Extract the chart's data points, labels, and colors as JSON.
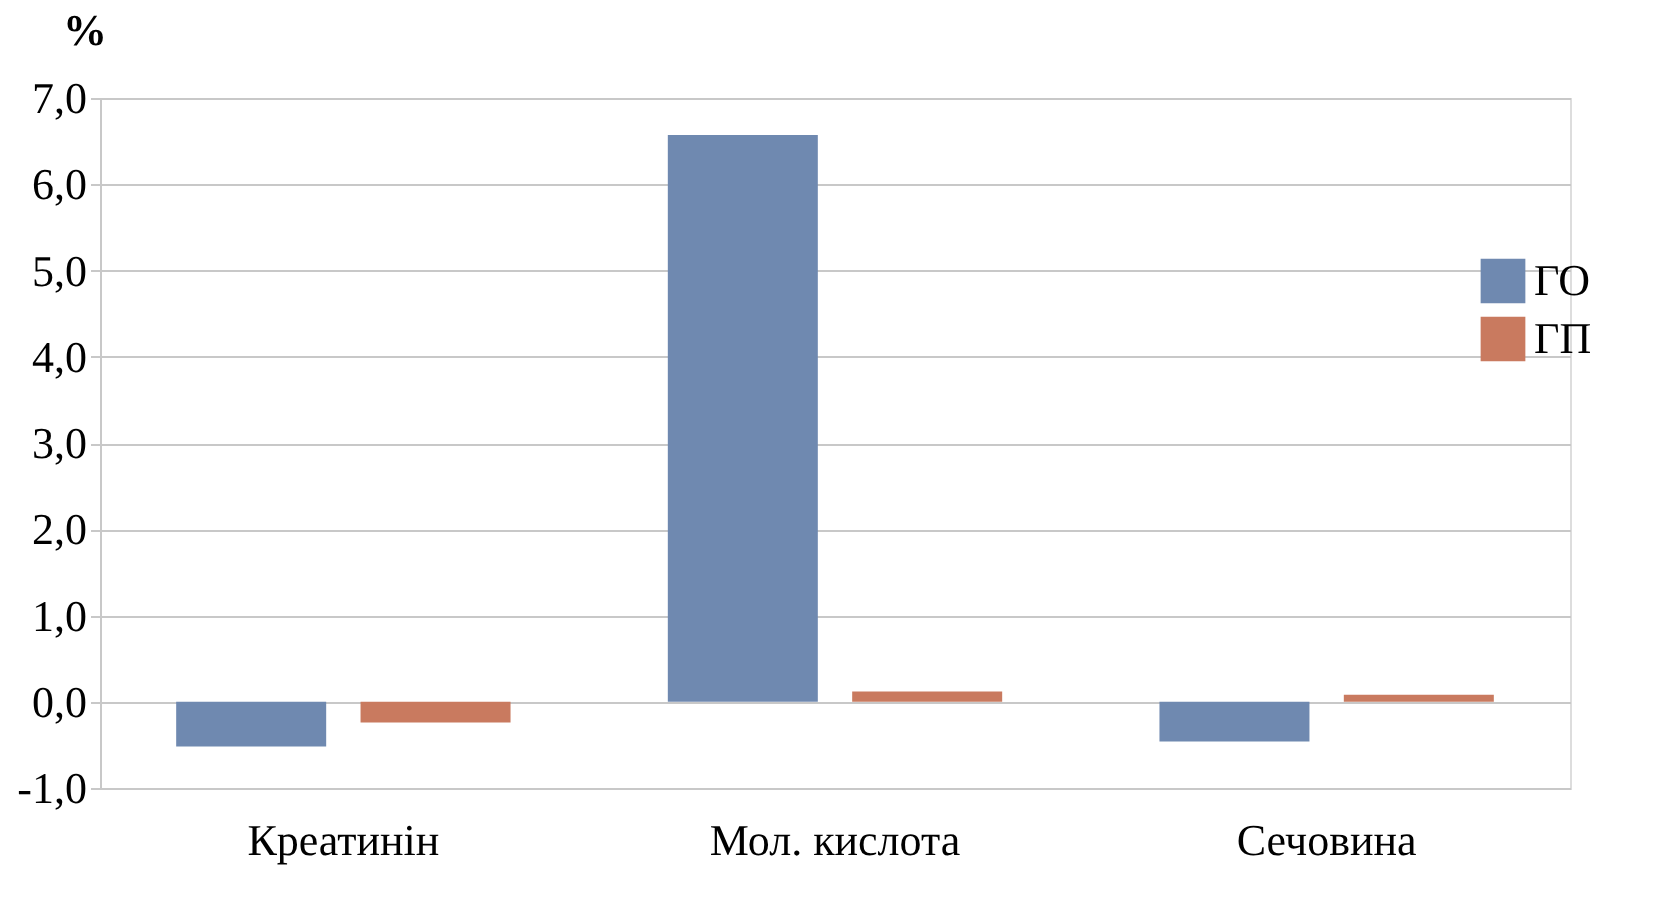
{
  "chart_data": {
    "type": "bar",
    "ylabel": "%",
    "categories": [
      "Креатинін",
      "Мол. кислота",
      "Сечовина"
    ],
    "series": [
      {
        "name": "ГО",
        "color": "#6f89b0",
        "values": [
          -0.52,
          6.57,
          -0.46
        ]
      },
      {
        "name": "ГП",
        "color": "#c97a5f",
        "values": [
          -0.24,
          0.12,
          0.08
        ]
      }
    ],
    "ylim": [
      -1.0,
      7.0
    ],
    "yticks": [
      {
        "value": -1,
        "label": "-1,0"
      },
      {
        "value": 0,
        "label": "0,0"
      },
      {
        "value": 1,
        "label": "1,0"
      },
      {
        "value": 2,
        "label": "2,0"
      },
      {
        "value": 3,
        "label": "3,0"
      },
      {
        "value": 4,
        "label": "4,0"
      },
      {
        "value": 5,
        "label": "5,0"
      },
      {
        "value": 6,
        "label": "6,0"
      },
      {
        "value": 7,
        "label": "7,0"
      }
    ],
    "grid": "y",
    "legend": "right"
  }
}
